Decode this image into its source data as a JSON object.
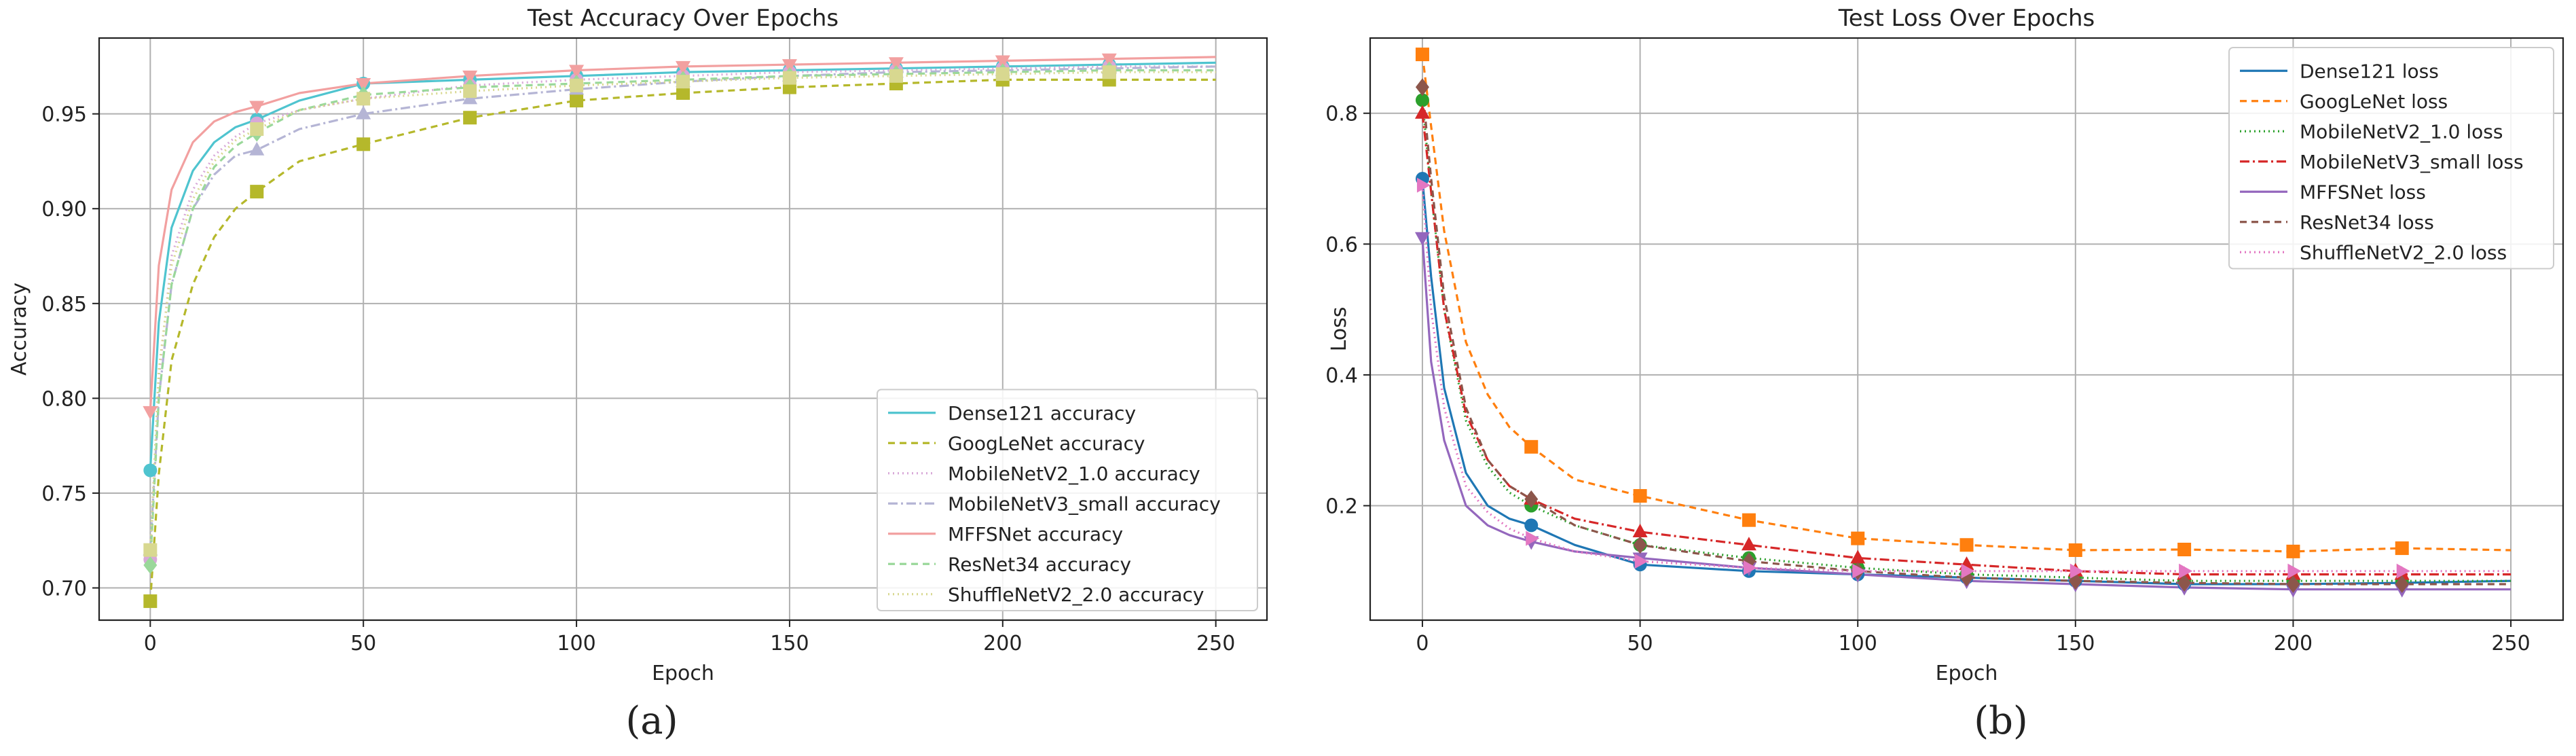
{
  "panels": [
    {
      "caption": "(a)",
      "chart_data": {
        "type": "line",
        "title": "Test Accuracy Over Epochs",
        "xlabel": "Epoch",
        "ylabel": "Accuracy",
        "xlim": [
          -12,
          262
        ],
        "ylim": [
          0.683,
          0.99
        ],
        "xticks": [
          0,
          50,
          100,
          150,
          200,
          250
        ],
        "xtick_labels": [
          "0",
          "50",
          "100",
          "150",
          "200",
          "250"
        ],
        "yticks": [
          0.7,
          0.75,
          0.8,
          0.85,
          0.9,
          0.95
        ],
        "ytick_labels": [
          "0.70",
          "0.75",
          "0.80",
          "0.85",
          "0.90",
          "0.95"
        ],
        "grid": true,
        "legend_position": "lower-right",
        "x": [
          0,
          2,
          5,
          10,
          15,
          20,
          25,
          35,
          50,
          75,
          100,
          125,
          150,
          175,
          200,
          225,
          250
        ],
        "marker_x": [
          0,
          25,
          50,
          75,
          100,
          125,
          150,
          175,
          200,
          225
        ],
        "series": [
          {
            "name": "Dense121 accuracy",
            "color": "#4fc4cf",
            "dash": "",
            "marker": "circle",
            "values": [
              0.762,
              0.84,
              0.89,
              0.92,
              0.935,
              0.943,
              0.947,
              0.957,
              0.966,
              0.968,
              0.97,
              0.972,
              0.973,
              0.974,
              0.975,
              0.976,
              0.977
            ]
          },
          {
            "name": "GoogLeNet accuracy",
            "color": "#b5b82b",
            "dash": "10,7",
            "marker": "square",
            "values": [
              0.693,
              0.76,
              0.82,
              0.86,
              0.885,
              0.9,
              0.909,
              0.925,
              0.934,
              0.948,
              0.957,
              0.961,
              0.964,
              0.966,
              0.968,
              0.968,
              0.968
            ]
          },
          {
            "name": "MobileNetV2_1.0 accuracy",
            "color": "#d8a8d8",
            "dash": "2,5",
            "marker": "circle",
            "values": [
              0.715,
              0.81,
              0.875,
              0.91,
              0.928,
              0.938,
              0.945,
              0.952,
              0.958,
              0.965,
              0.968,
              0.97,
              0.972,
              0.973,
              0.974,
              0.975,
              0.975
            ]
          },
          {
            "name": "MobileNetV3_small accuracy",
            "color": "#b5b5d5",
            "dash": "14,5,3,5",
            "marker": "triangle",
            "values": [
              0.72,
              0.8,
              0.86,
              0.9,
              0.918,
              0.928,
              0.931,
              0.942,
              0.95,
              0.958,
              0.963,
              0.967,
              0.97,
              0.972,
              0.973,
              0.974,
              0.975
            ]
          },
          {
            "name": "MFFSNet accuracy",
            "color": "#f2a0a0",
            "dash": "",
            "marker": "triangle-down",
            "values": [
              0.793,
              0.87,
              0.91,
              0.935,
              0.946,
              0.951,
              0.954,
              0.961,
              0.966,
              0.97,
              0.973,
              0.975,
              0.976,
              0.977,
              0.978,
              0.979,
              0.98
            ]
          },
          {
            "name": "ResNet34 accuracy",
            "color": "#9ad89a",
            "dash": "10,7",
            "marker": "diamond",
            "values": [
              0.712,
              0.8,
              0.86,
              0.9,
              0.922,
              0.933,
              0.94,
              0.952,
              0.96,
              0.964,
              0.966,
              0.968,
              0.97,
              0.971,
              0.972,
              0.973,
              0.973
            ]
          },
          {
            "name": "ShuffleNetV2_2.0 accuracy",
            "color": "#d8d890",
            "dash": "2,5",
            "marker": "square",
            "values": [
              0.72,
              0.815,
              0.87,
              0.905,
              0.925,
              0.936,
              0.942,
              0.952,
              0.958,
              0.962,
              0.965,
              0.967,
              0.969,
              0.97,
              0.971,
              0.972,
              0.972
            ]
          }
        ]
      }
    },
    {
      "caption": "(b)",
      "chart_data": {
        "type": "line",
        "title": "Test Loss Over Epochs",
        "xlabel": "Epoch",
        "ylabel": "Loss",
        "xlim": [
          -12,
          262
        ],
        "ylim": [
          0.025,
          0.915
        ],
        "xticks": [
          0,
          50,
          100,
          150,
          200,
          250
        ],
        "xtick_labels": [
          "0",
          "50",
          "100",
          "150",
          "200",
          "250"
        ],
        "yticks": [
          0.2,
          0.4,
          0.6,
          0.8
        ],
        "ytick_labels": [
          "0.2",
          "0.4",
          "0.6",
          "0.8"
        ],
        "grid": true,
        "legend_position": "top-right",
        "x": [
          0,
          2,
          5,
          10,
          15,
          20,
          25,
          35,
          50,
          75,
          100,
          125,
          150,
          175,
          200,
          225,
          250
        ],
        "marker_x": [
          0,
          25,
          50,
          75,
          100,
          125,
          150,
          175,
          200,
          225
        ],
        "series": [
          {
            "name": "Dense121 loss",
            "color": "#1f77b4",
            "dash": "",
            "marker": "circle",
            "values": [
              0.7,
              0.55,
              0.38,
              0.25,
              0.2,
              0.18,
              0.17,
              0.14,
              0.11,
              0.1,
              0.095,
              0.09,
              0.085,
              0.08,
              0.08,
              0.082,
              0.085
            ]
          },
          {
            "name": "GoogLeNet loss",
            "color": "#ff7f0e",
            "dash": "10,7",
            "marker": "square",
            "values": [
              0.89,
              0.78,
              0.62,
              0.45,
              0.37,
              0.32,
              0.29,
              0.24,
              0.215,
              0.178,
              0.15,
              0.14,
              0.132,
              0.133,
              0.13,
              0.135,
              0.132
            ]
          },
          {
            "name": "MobileNetV2_1.0 loss",
            "color": "#2ca02c",
            "dash": "2,5",
            "marker": "circle",
            "values": [
              0.82,
              0.68,
              0.5,
              0.33,
              0.26,
              0.22,
              0.2,
              0.17,
              0.14,
              0.12,
              0.105,
              0.095,
              0.09,
              0.085,
              0.085,
              0.085,
              0.085
            ]
          },
          {
            "name": "MobileNetV3_small loss",
            "color": "#d62728",
            "dash": "14,5,3,5",
            "marker": "triangle",
            "values": [
              0.8,
              0.68,
              0.5,
              0.34,
              0.27,
              0.23,
              0.21,
              0.18,
              0.16,
              0.14,
              0.12,
              0.11,
              0.1,
              0.095,
              0.095,
              0.095,
              0.095
            ]
          },
          {
            "name": "MFFSNet loss",
            "color": "#9467bd",
            "dash": "",
            "marker": "triangle-down",
            "values": [
              0.61,
              0.42,
              0.3,
              0.2,
              0.17,
              0.155,
              0.145,
              0.13,
              0.12,
              0.105,
              0.095,
              0.085,
              0.08,
              0.075,
              0.072,
              0.072,
              0.072
            ]
          },
          {
            "name": "ResNet34 loss",
            "color": "#8c564b",
            "dash": "10,7",
            "marker": "diamond",
            "values": [
              0.84,
              0.7,
              0.52,
              0.35,
              0.27,
              0.23,
              0.21,
              0.17,
              0.14,
              0.115,
              0.1,
              0.09,
              0.085,
              0.082,
              0.08,
              0.08,
              0.08
            ]
          },
          {
            "name": "ShuffleNetV2_2.0 loss",
            "color": "#e377c2",
            "dash": "2,5",
            "marker": "triangle-right",
            "values": [
              0.69,
              0.5,
              0.35,
              0.23,
              0.19,
              0.165,
              0.15,
              0.13,
              0.115,
              0.105,
              0.1,
              0.1,
              0.1,
              0.1,
              0.1,
              0.1,
              0.1
            ]
          }
        ]
      }
    }
  ]
}
